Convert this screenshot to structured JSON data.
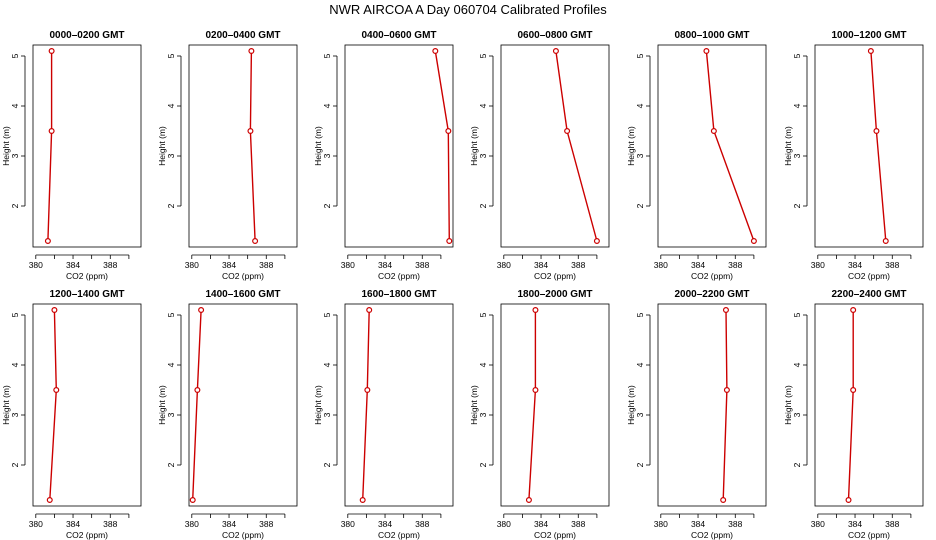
{
  "title": "NWR AIRCOA A  Day 060704  Calibrated Profiles",
  "chart_data": {
    "type": "line",
    "xlabel": "CO2 (ppm)",
    "ylabel": "Height (m)",
    "xlim": [
      379.7,
      391.3
    ],
    "ylim": [
      1.18,
      5.22
    ],
    "xticks": [
      380,
      384,
      388
    ],
    "yticks": [
      2,
      3,
      4,
      5
    ],
    "line_color": "#cc0000",
    "panels": [
      {
        "title": "0000–0200 GMT",
        "x": [
          381.3,
          381.7,
          381.7
        ],
        "y": [
          1.3,
          3.5,
          5.1
        ]
      },
      {
        "title": "0200–0400 GMT",
        "x": [
          386.8,
          386.3,
          386.4
        ],
        "y": [
          1.3,
          3.5,
          5.1
        ]
      },
      {
        "title": "0400–0600 GMT",
        "x": [
          390.9,
          390.8,
          389.4
        ],
        "y": [
          1.3,
          3.5,
          5.1
        ]
      },
      {
        "title": "0600–0800 GMT",
        "x": [
          390.0,
          386.8,
          385.6
        ],
        "y": [
          1.3,
          3.5,
          5.1
        ]
      },
      {
        "title": "0800–1000 GMT",
        "x": [
          390.0,
          385.7,
          384.9
        ],
        "y": [
          1.3,
          3.5,
          5.1
        ]
      },
      {
        "title": "1000–1200 GMT",
        "x": [
          387.3,
          386.3,
          385.7
        ],
        "y": [
          1.3,
          3.5,
          5.1
        ]
      },
      {
        "title": "1200–1400 GMT",
        "x": [
          381.5,
          382.2,
          382.0
        ],
        "y": [
          1.3,
          3.5,
          5.1
        ]
      },
      {
        "title": "1400–1600 GMT",
        "x": [
          380.1,
          380.6,
          381.0
        ],
        "y": [
          1.3,
          3.5,
          5.1
        ]
      },
      {
        "title": "1600–1800 GMT",
        "x": [
          381.6,
          382.1,
          382.3
        ],
        "y": [
          1.3,
          3.5,
          5.1
        ]
      },
      {
        "title": "1800–2000 GMT",
        "x": [
          382.7,
          383.4,
          383.4
        ],
        "y": [
          1.3,
          3.5,
          5.1
        ]
      },
      {
        "title": "2000–2200 GMT",
        "x": [
          386.7,
          387.1,
          387.0
        ],
        "y": [
          1.3,
          3.5,
          5.1
        ]
      },
      {
        "title": "2200–2400 GMT",
        "x": [
          383.3,
          383.8,
          383.8
        ],
        "y": [
          1.3,
          3.5,
          5.1
        ]
      }
    ]
  }
}
